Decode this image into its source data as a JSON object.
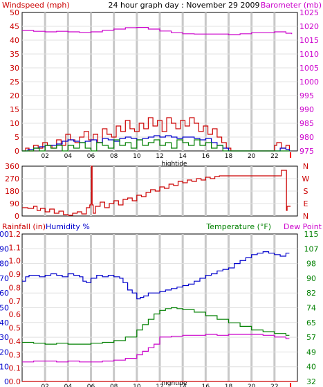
{
  "colors": {
    "red": "#cc0000",
    "magenta": "#cc00cc",
    "blue": "#0000cc",
    "green": "#008000",
    "grid": "#c8c8c8",
    "frame": "#000000",
    "hightide_marker": "#ff0000"
  },
  "chart_data": [
    {
      "type": "line",
      "title": "24 hour graph day : November 29 2009",
      "left_axis_label": "Windspeed (mph)",
      "right_axis_label": "Barometer (mb)",
      "x_label": "hightide",
      "x_ticks": [
        "02",
        "04",
        "06",
        "08",
        "10",
        "12",
        "14",
        "16",
        "18",
        "20",
        "22"
      ],
      "x_range": [
        0,
        24
      ],
      "left_range": [
        0,
        50
      ],
      "left_ticks": [
        "0",
        "5",
        "10",
        "15",
        "20",
        "25",
        "30",
        "35",
        "40",
        "45",
        "50"
      ],
      "right_range": [
        975,
        1025
      ],
      "right_ticks": [
        "975",
        "980",
        "985",
        "990",
        "995",
        "1000",
        "1005",
        "1010",
        "1015",
        "1020",
        "1025"
      ],
      "series": [
        {
          "axis": "right",
          "color": "#cc00cc",
          "x": [
            0,
            1,
            2,
            3,
            4,
            5,
            6,
            7,
            8,
            9,
            10,
            11,
            12,
            13,
            14,
            15,
            16,
            17,
            18,
            19,
            20,
            21,
            22,
            23,
            23.5
          ],
          "y": [
            1018.5,
            1018.2,
            1018.0,
            1018.2,
            1018.0,
            1017.8,
            1018.0,
            1018.6,
            1019.0,
            1019.5,
            1019.6,
            1019.0,
            1018.3,
            1017.7,
            1017.3,
            1017.2,
            1017.2,
            1017.2,
            1017.0,
            1017.3,
            1017.7,
            1017.7,
            1018.0,
            1017.5,
            1017.2
          ]
        },
        {
          "axis": "left",
          "color": "#cc0000",
          "x": [
            0,
            0.3,
            0.6,
            1,
            1.4,
            1.8,
            2.2,
            2.6,
            3,
            3.4,
            3.8,
            4.2,
            4.6,
            5,
            5.4,
            5.8,
            6.2,
            6.6,
            7,
            7.4,
            7.8,
            8.2,
            8.6,
            9,
            9.4,
            9.8,
            10.2,
            10.6,
            11,
            11.4,
            11.8,
            12.2,
            12.6,
            13,
            13.4,
            13.8,
            14.2,
            14.6,
            15,
            15.4,
            15.8,
            16.2,
            16.6,
            17,
            17.4,
            17.8,
            18.2,
            18.6,
            19,
            19.4,
            19.8,
            20.2,
            20.6,
            21,
            21.4,
            21.8,
            22,
            22.2,
            22.6,
            23,
            23.3
          ],
          "y": [
            0,
            1,
            0,
            2,
            1,
            3,
            2,
            1,
            4,
            2,
            6,
            4,
            3,
            5,
            7,
            4,
            6,
            3,
            8,
            6,
            5,
            9,
            7,
            11,
            8,
            7,
            10,
            8,
            12,
            9,
            11,
            7,
            12,
            10,
            8,
            11,
            9,
            12,
            10,
            7,
            9,
            6,
            8,
            5,
            3,
            1,
            0,
            0,
            0,
            0,
            0,
            0,
            0,
            0,
            0,
            0,
            2,
            3,
            1,
            2,
            0
          ]
        },
        {
          "axis": "left",
          "color": "#0000cc",
          "x": [
            0,
            0.5,
            1,
            1.5,
            2,
            2.5,
            3,
            3.5,
            4,
            4.5,
            5,
            5.5,
            6,
            6.5,
            7,
            7.5,
            8,
            8.5,
            9,
            9.5,
            10,
            10.5,
            11,
            11.5,
            12,
            12.5,
            13,
            13.5,
            14,
            14.5,
            15,
            15.5,
            16,
            16.5,
            17,
            17.5,
            18,
            19,
            20,
            21,
            22,
            22.5,
            23,
            23.3
          ],
          "y": [
            0,
            0.5,
            1,
            1.5,
            2,
            2,
            2.5,
            3.5,
            4,
            3.5,
            3,
            3.5,
            4,
            3,
            4.5,
            4,
            3.5,
            4.5,
            5,
            4.5,
            4,
            4.5,
            5,
            5.5,
            5,
            5.5,
            5,
            4.5,
            5,
            5,
            4.5,
            4,
            4.5,
            3,
            2,
            1,
            0,
            0,
            0,
            0,
            0,
            1,
            0.5,
            0
          ]
        },
        {
          "axis": "left",
          "color": "#008000",
          "x": [
            0,
            0.5,
            1,
            1.5,
            2,
            2.5,
            3,
            3.5,
            4,
            4.5,
            5,
            5.5,
            6,
            6.5,
            7,
            7.5,
            8,
            8.5,
            9,
            9.5,
            10,
            10.5,
            11,
            11.5,
            12,
            12.5,
            13,
            13.5,
            14,
            14.5,
            15,
            15.5,
            16,
            16.5,
            17,
            17.5,
            18,
            20,
            22,
            23.3
          ],
          "y": [
            0,
            0,
            1,
            0,
            2,
            1,
            2,
            0,
            2,
            1,
            3,
            1,
            0,
            3,
            2,
            1,
            4,
            2,
            3,
            1,
            4,
            2,
            3,
            4,
            2,
            3,
            1,
            4,
            3,
            2,
            4,
            2,
            3,
            1,
            2,
            0,
            0,
            0,
            0,
            0
          ]
        }
      ]
    },
    {
      "type": "line",
      "left_range": [
        0,
        360
      ],
      "left_ticks": [
        "0",
        "90",
        "180",
        "270",
        "360"
      ],
      "right_ticks": [
        "N",
        "W",
        "S",
        "E",
        "N"
      ],
      "x_range": [
        0,
        24
      ],
      "series": [
        {
          "axis": "left",
          "color": "#cc0000",
          "x": [
            0,
            0.5,
            1,
            1.3,
            1.6,
            2,
            2.4,
            2.8,
            3.2,
            3.6,
            4,
            4.4,
            4.8,
            5.2,
            5.6,
            5.9,
            6.0,
            6.05,
            6.1,
            6.2,
            6.4,
            6.8,
            7.2,
            7.6,
            8,
            8.4,
            8.8,
            9.2,
            9.6,
            10,
            10.4,
            10.8,
            11.2,
            11.6,
            12,
            12.4,
            12.8,
            13.2,
            13.6,
            14,
            14.4,
            14.8,
            15.2,
            15.6,
            16,
            16.4,
            16.8,
            17.2,
            18,
            19,
            20,
            21,
            22,
            22.4,
            22.6,
            23.0,
            23.05,
            23.1,
            23.4
          ],
          "y": [
            60,
            55,
            70,
            40,
            55,
            30,
            50,
            20,
            35,
            10,
            5,
            20,
            30,
            15,
            60,
            80,
            90,
            360,
            80,
            20,
            70,
            100,
            60,
            90,
            110,
            80,
            120,
            130,
            110,
            150,
            140,
            170,
            190,
            180,
            210,
            200,
            230,
            220,
            250,
            240,
            260,
            250,
            270,
            260,
            280,
            270,
            285,
            290,
            290,
            290,
            290,
            290,
            290,
            290,
            330,
            330,
            40,
            70,
            70
          ]
        }
      ]
    },
    {
      "type": "line",
      "left_axis_label": "Rainfall (in)",
      "humidity_label": "Humidity %",
      "right_axis_label": "Temperature (°F)",
      "dew_label": "Dew Point",
      "x_label": "hightide",
      "x_ticks": [
        "02",
        "04",
        "06",
        "08",
        "10",
        "12",
        "14",
        "16",
        "18",
        "20",
        "22"
      ],
      "x_range": [
        0,
        24
      ],
      "humidity_range": [
        0,
        100
      ],
      "humidity_ticks": [
        "0",
        "10",
        "20",
        "30",
        "40",
        "50",
        "60",
        "70",
        "80",
        "90",
        "100"
      ],
      "rain_ticks": [
        "0.0",
        "0.1",
        "0.3",
        "0.4",
        "0.5",
        "0.6",
        "0.7",
        "0.8",
        "0.9",
        "1.0",
        "1.1",
        "1.2"
      ],
      "temp_range": [
        32,
        115
      ],
      "temp_ticks": [
        "32",
        "40",
        "49",
        "57",
        "65",
        "74",
        "82",
        "90",
        "98",
        "107",
        "115"
      ],
      "series": [
        {
          "name": "Humidity %",
          "axis": "humidity",
          "color": "#0000cc",
          "x": [
            0,
            0.3,
            0.6,
            1,
            1.5,
            2,
            2.5,
            3,
            3.5,
            4,
            4.5,
            5,
            5.3,
            5.6,
            6,
            6.5,
            7,
            7.5,
            8,
            8.5,
            8.8,
            9.2,
            9.6,
            10,
            10.3,
            10.6,
            11,
            11.5,
            12,
            12.5,
            13,
            13.5,
            14,
            14.5,
            15,
            15.5,
            16,
            16.5,
            17,
            17.5,
            18,
            18.5,
            19,
            19.5,
            20,
            20.5,
            21,
            21.5,
            22,
            22.5,
            23,
            23.3
          ],
          "y": [
            68,
            71,
            72,
            72,
            71,
            72,
            73,
            72,
            71,
            73,
            72,
            71,
            68,
            67,
            70,
            72,
            71,
            72,
            71,
            70,
            67,
            62,
            60,
            56,
            57,
            58,
            60,
            60,
            61,
            62,
            63,
            64,
            65,
            66,
            68,
            70,
            72,
            73,
            75,
            76,
            77,
            80,
            82,
            84,
            86,
            87,
            88,
            87,
            86,
            85,
            87,
            87
          ]
        },
        {
          "name": "Temperature (°F)",
          "axis": "temp",
          "color": "#008000",
          "x": [
            0,
            1,
            2,
            3,
            4,
            5,
            6,
            7,
            8,
            9,
            10,
            10.5,
            11,
            11.5,
            12,
            12.5,
            13,
            13.5,
            14,
            15,
            16,
            17,
            18,
            19,
            20,
            21,
            22,
            23,
            23.3
          ],
          "y": [
            54,
            53.5,
            53,
            53.5,
            53,
            53,
            53.5,
            54,
            55,
            57,
            61,
            64,
            67,
            70,
            72,
            73,
            73.5,
            73,
            72.5,
            71,
            69,
            67,
            65,
            63,
            61,
            60,
            59,
            58,
            58
          ]
        },
        {
          "name": "Dew Point",
          "axis": "temp",
          "color": "#cc00cc",
          "x": [
            0,
            1,
            2,
            3,
            4,
            5,
            6,
            7,
            8,
            9,
            10,
            10.5,
            11,
            11.5,
            12,
            13,
            14,
            15,
            16,
            17,
            18,
            19,
            20,
            21,
            22,
            23,
            23.3
          ],
          "y": [
            43,
            43.5,
            43.5,
            43,
            43.5,
            43,
            43,
            43.5,
            44,
            45,
            47,
            49,
            51,
            53,
            57,
            57.5,
            58,
            58,
            58.5,
            58,
            58.5,
            58.5,
            58.5,
            58,
            57,
            56,
            56
          ]
        },
        {
          "name": "Rainfall (in)",
          "axis": "rain",
          "color": "#cc0000",
          "x": [
            0,
            24
          ],
          "y": [
            0,
            0
          ]
        }
      ]
    }
  ]
}
